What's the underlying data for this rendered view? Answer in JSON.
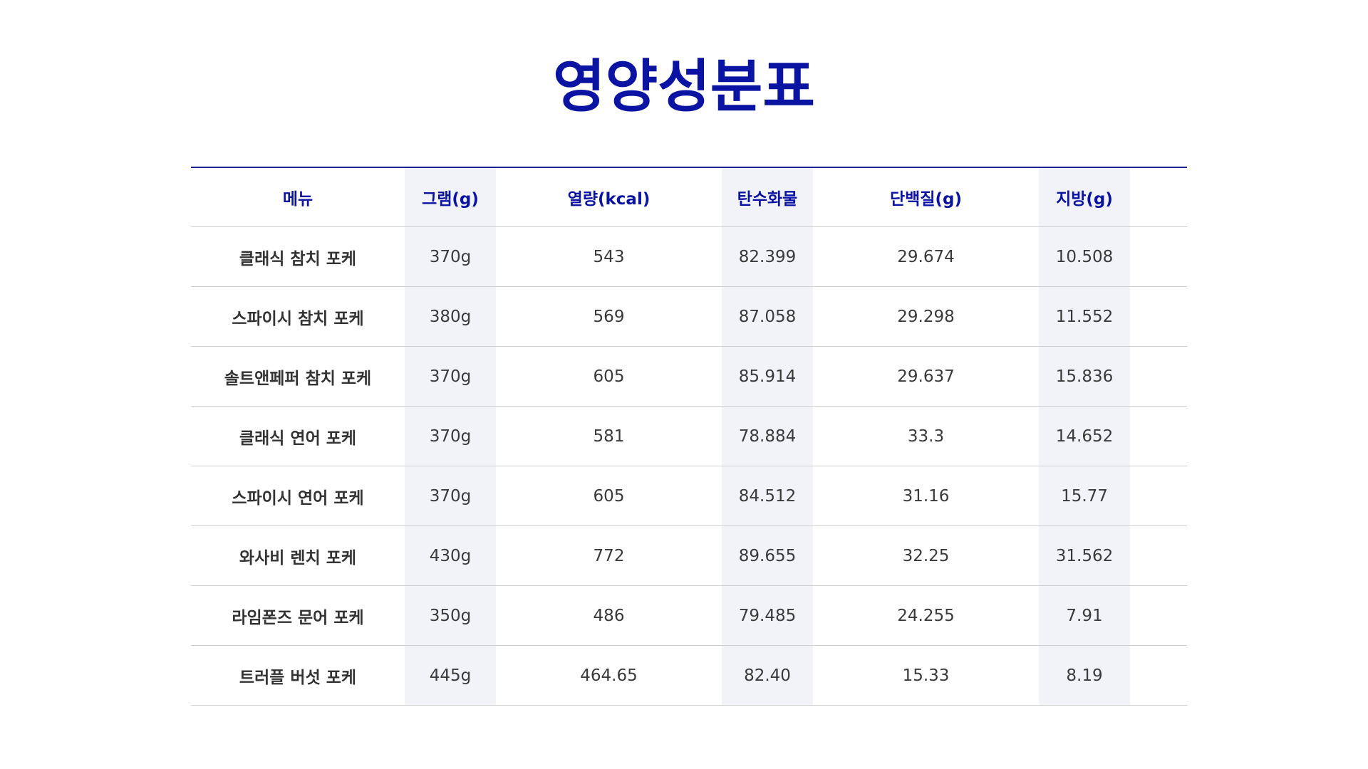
{
  "title": "영양성분표",
  "table": {
    "headers": {
      "menu": "메뉴",
      "gram": "그램(g)",
      "kcal": "열량(kcal)",
      "carbs": "탄수화물",
      "protein": "단백질(g)",
      "fat": "지방(g)"
    },
    "rows": [
      {
        "menu": "클래식 참치 포케",
        "gram": "370g",
        "kcal": "543",
        "carbs": "82.399",
        "protein": "29.674",
        "fat": "10.508"
      },
      {
        "menu": "스파이시 참치 포케",
        "gram": "380g",
        "kcal": "569",
        "carbs": "87.058",
        "protein": "29.298",
        "fat": "11.552"
      },
      {
        "menu": "솔트앤페퍼 참치 포케",
        "gram": "370g",
        "kcal": "605",
        "carbs": "85.914",
        "protein": "29.637",
        "fat": "15.836"
      },
      {
        "menu": "클래식 연어 포케",
        "gram": "370g",
        "kcal": "581",
        "carbs": "78.884",
        "protein": "33.3",
        "fat": "14.652"
      },
      {
        "menu": "스파이시 연어 포케",
        "gram": "370g",
        "kcal": "605",
        "carbs": "84.512",
        "protein": "31.16",
        "fat": "15.77"
      },
      {
        "menu": "와사비 렌치 포케",
        "gram": "430g",
        "kcal": "772",
        "carbs": "89.655",
        "protein": "32.25",
        "fat": "31.562"
      },
      {
        "menu": "라임폰즈 문어 포케",
        "gram": "350g",
        "kcal": "486",
        "carbs": "79.485",
        "protein": "24.255",
        "fat": "7.91"
      },
      {
        "menu": "트러플 버섯 포케",
        "gram": "445g",
        "kcal": "464.65",
        "carbs": "82.40",
        "protein": "15.33",
        "fat": "8.19"
      }
    ]
  },
  "colors": {
    "accent": "#0b13a3",
    "column_shade": "#f2f3f9",
    "rule": "#cfcfcf"
  }
}
